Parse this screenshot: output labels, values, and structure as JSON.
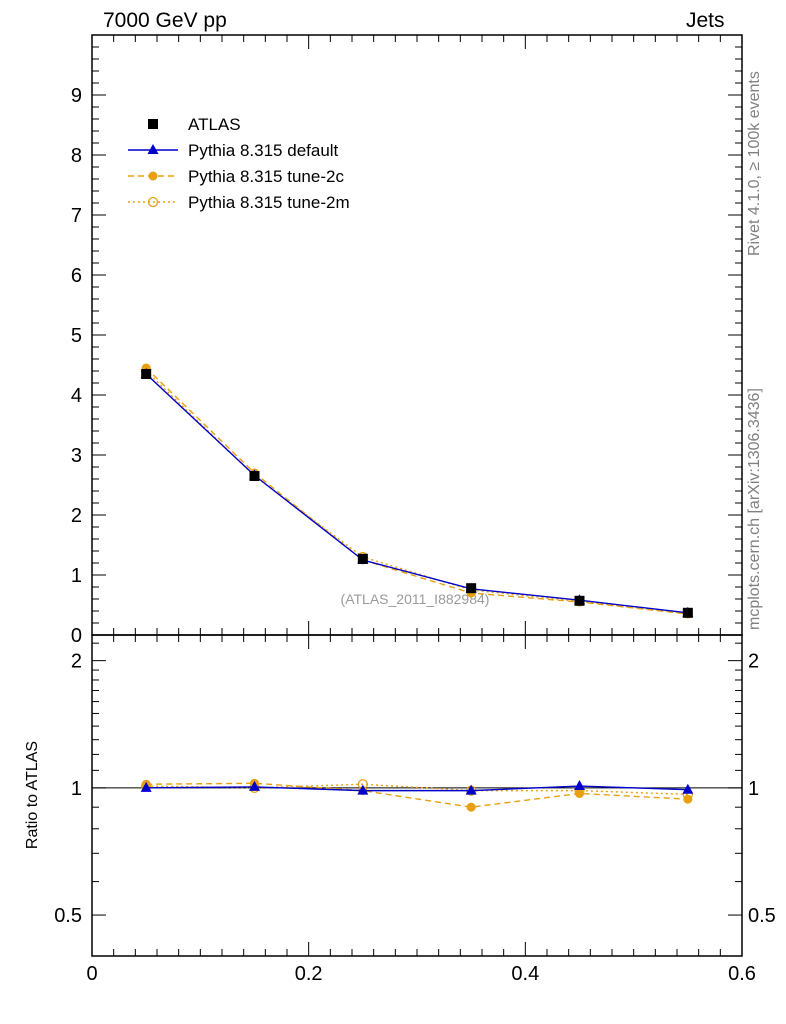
{
  "header": {
    "left": "7000 GeV pp",
    "right": "Jets"
  },
  "side": {
    "rivet": "Rivet 4.1.0, ≥ 100k events",
    "mcplots": "mcplots.cern.ch [arXiv:1306.3436]"
  },
  "watermark": "(ATLAS_2011_I882984)",
  "ratio_ylabel": "Ratio to ATLAS",
  "legend": [
    {
      "label": "ATLAS",
      "marker": "square",
      "color": "#000000",
      "line": "none"
    },
    {
      "label": "Pythia 8.315 default",
      "marker": "triangle",
      "color": "#0000cc",
      "line": "solid"
    },
    {
      "label": "Pythia 8.315 tune-2c",
      "marker": "circle-filled",
      "color": "#e8a010",
      "line": "dashed"
    },
    {
      "label": "Pythia 8.315 tune-2m",
      "marker": "circle-open",
      "color": "#e8a010",
      "line": "dotted"
    }
  ],
  "chart_data": {
    "type": "line",
    "x": [
      0.05,
      0.15,
      0.25,
      0.35,
      0.45,
      0.55
    ],
    "xlim": [
      0,
      0.6
    ],
    "xticks": [
      "0",
      "0.2",
      "0.4",
      "0.6"
    ],
    "main": {
      "ylim": [
        0,
        10
      ],
      "yticks": [
        "0",
        "1",
        "2",
        "3",
        "4",
        "5",
        "6",
        "7",
        "8",
        "9"
      ],
      "series": [
        {
          "name": "ATLAS",
          "values": [
            4.35,
            2.65,
            1.27,
            0.78,
            0.57,
            0.37
          ]
        },
        {
          "name": "Pythia 8.315 default",
          "values": [
            4.35,
            2.66,
            1.25,
            0.77,
            0.58,
            0.37
          ]
        },
        {
          "name": "Pythia 8.315 tune-2c",
          "values": [
            4.45,
            2.7,
            1.25,
            0.7,
            0.55,
            0.35
          ]
        },
        {
          "name": "Pythia 8.315 tune-2m",
          "values": [
            4.4,
            2.65,
            1.3,
            0.75,
            0.56,
            0.36
          ]
        }
      ]
    },
    "ratio": {
      "ylim": [
        0.4,
        2.3
      ],
      "ytick_values": [
        0.5,
        1,
        2
      ],
      "yticks": [
        "0.5",
        "1",
        "2"
      ],
      "series": [
        {
          "name": "Pythia 8.315 default",
          "values": [
            1.0,
            1.005,
            0.985,
            0.985,
            1.01,
            0.99
          ]
        },
        {
          "name": "Pythia 8.315 tune-2c",
          "values": [
            1.02,
            1.025,
            0.985,
            0.9,
            0.97,
            0.94
          ]
        },
        {
          "name": "Pythia 8.315 tune-2m",
          "values": [
            1.01,
            1.0,
            1.02,
            0.985,
            0.985,
            0.965
          ]
        }
      ]
    }
  }
}
